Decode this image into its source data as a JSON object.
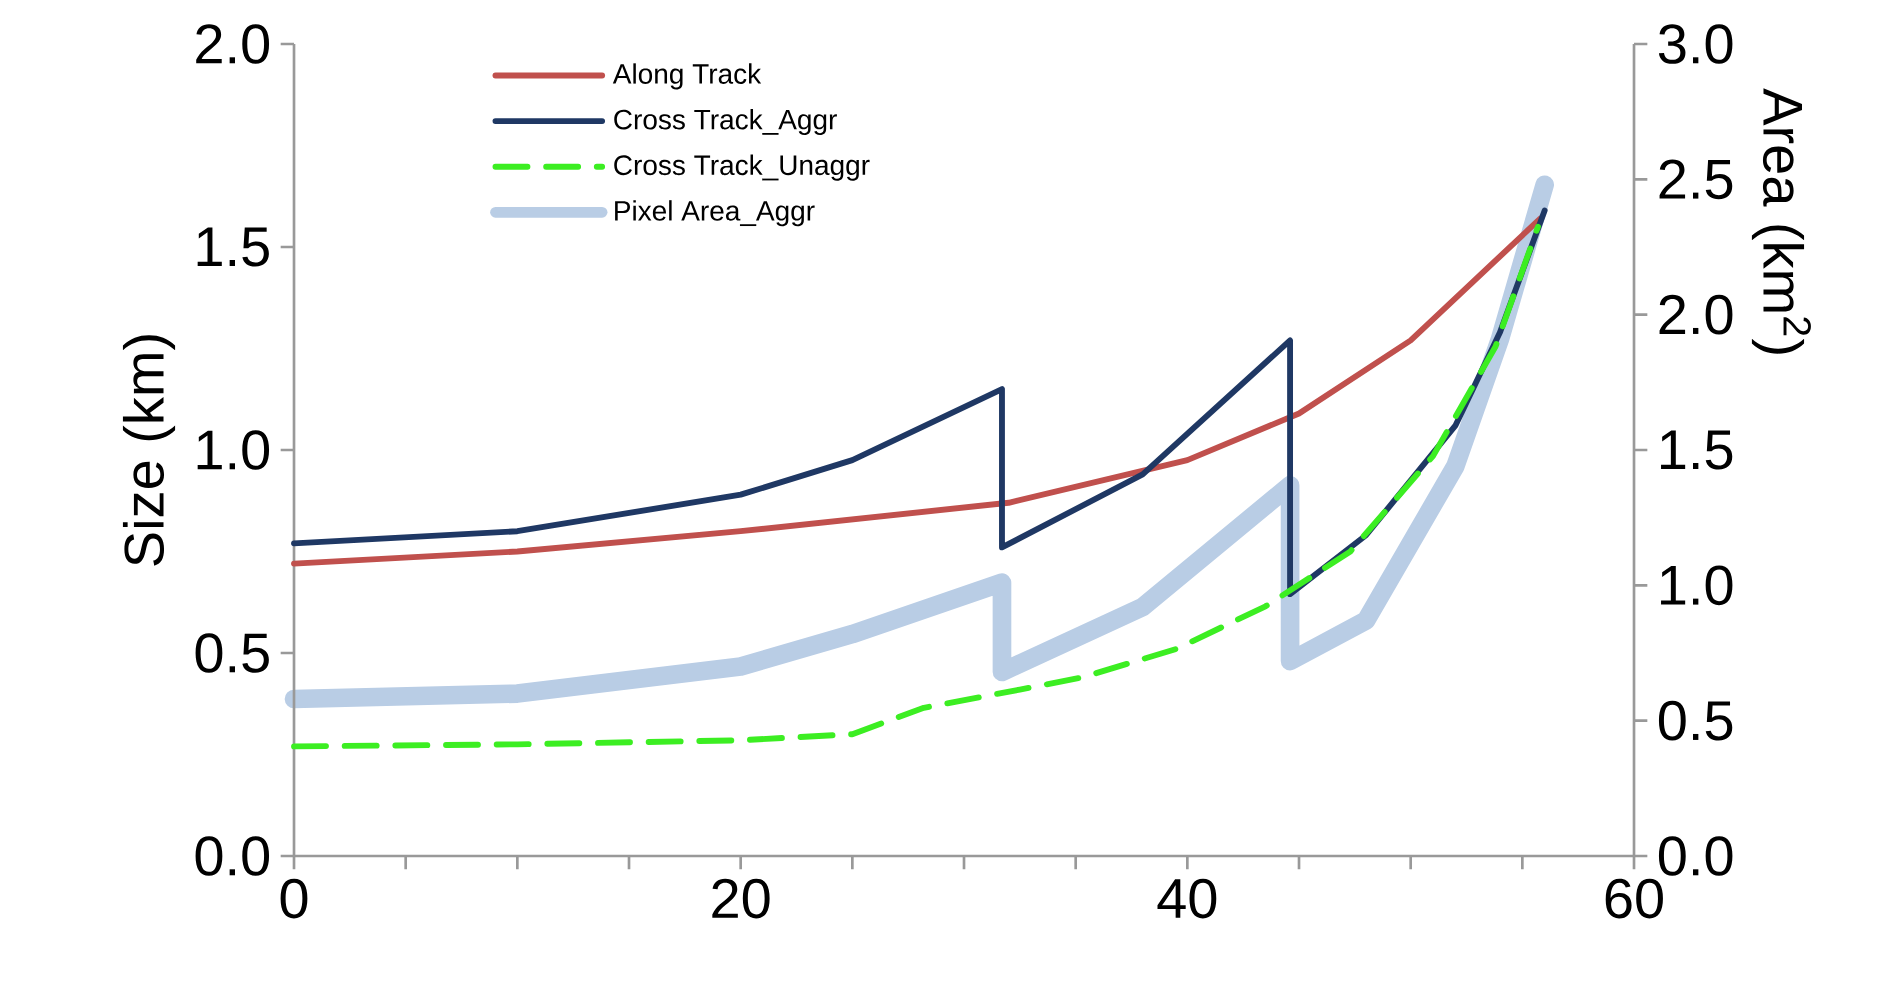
{
  "chart_data": {
    "type": "line",
    "ylabel": "Size (km)",
    "y2label": "Area (km$^{2}$)",
    "xlim": [
      0,
      60
    ],
    "xticks": [
      0,
      {
        "value": 5,
        "label": null
      },
      {
        "value": 10,
        "label": null
      },
      {
        "value": 15,
        "label": null
      },
      20,
      {
        "value": 25,
        "label": null
      },
      {
        "value": 30,
        "label": null
      },
      {
        "value": 35,
        "label": null
      },
      40,
      {
        "value": 45,
        "label": null
      },
      {
        "value": 50,
        "label": null
      },
      {
        "value": 55,
        "label": null
      },
      60
    ],
    "ylim": [
      0,
      2
    ],
    "yticks": [
      {
        "value": 0,
        "label": "0.0"
      },
      0.5,
      {
        "value": 1,
        "label": "1.0"
      },
      1.5,
      {
        "value": 2,
        "label": "2.0"
      }
    ],
    "y2lim": [
      0,
      3
    ],
    "y2ticks": [
      {
        "value": 0,
        "label": "0.0"
      },
      0.5,
      {
        "value": 1,
        "label": "1.0"
      },
      1.5,
      {
        "value": 2,
        "label": "2.0"
      },
      2.5,
      {
        "value": 3,
        "label": "3.0"
      }
    ],
    "grid": false,
    "legend": "top left",
    "marker": "none",
    "series": [
      {
        "name": "Along Track",
        "color": "#c0504d",
        "line_style": "solid",
        "x": [
          0,
          10,
          20,
          32,
          40,
          45,
          50,
          55.8
        ],
        "values": [
          0.72,
          0.75,
          0.8,
          0.87,
          0.975,
          1.09,
          1.27,
          1.57
        ]
      },
      {
        "name": "Cross Track_Aggr",
        "color": "#1f3864",
        "line_style": "solid",
        "x": [
          0,
          10,
          20,
          25,
          31.7,
          31.7,
          38,
          44.6,
          44.6,
          48,
          52,
          54,
          56
        ],
        "values": [
          0.77,
          0.8,
          0.89,
          0.975,
          1.15,
          0.76,
          0.94,
          1.27,
          0.645,
          0.79,
          1.06,
          1.29,
          1.59
        ]
      },
      {
        "name": "Cross Track_Unaggr",
        "color": "#3cee22",
        "line_style": "dashed",
        "x": [
          0,
          10,
          20,
          25,
          28.2,
          32.5,
          35.3,
          39.5,
          43.5,
          47.3,
          51,
          53.8,
          55.7
        ],
        "values": [
          0.27,
          0.275,
          0.285,
          0.3,
          0.365,
          0.41,
          0.44,
          0.51,
          0.615,
          0.75,
          0.985,
          1.255,
          1.55
        ]
      },
      {
        "name": "Pixel Area_Aggr",
        "color": "#b9cde5",
        "line_style": "solid",
        "axis": "y2",
        "x": [
          0,
          10,
          20,
          25,
          31.7,
          31.7,
          38,
          44.6,
          44.6,
          48,
          52,
          54,
          56
        ],
        "values": [
          0.58,
          0.6,
          0.7,
          0.82,
          1.01,
          0.68,
          0.92,
          1.37,
          0.72,
          0.87,
          1.44,
          1.91,
          2.48
        ]
      }
    ]
  }
}
